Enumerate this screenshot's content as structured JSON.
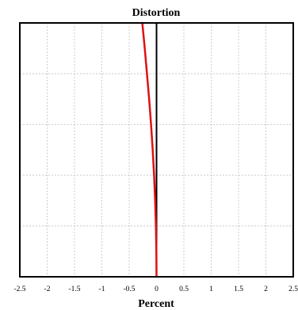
{
  "chart_data": {
    "type": "line",
    "title": "Distortion",
    "xlabel": "Percent",
    "ylabel": "",
    "xlim": [
      -2.5,
      2.5
    ],
    "ylim": [
      0,
      1
    ],
    "x_ticks": [
      "-2.5",
      "-2",
      "-1.5",
      "-1",
      "-0.5",
      "0",
      "0.5",
      "1",
      "1.5",
      "2",
      "2.5"
    ],
    "y_gridlines": 5,
    "grid": true,
    "series": [
      {
        "color": "#e01010",
        "points": [
          {
            "x": 0.0,
            "y": 0.0
          },
          {
            "x": -0.003,
            "y": 0.1
          },
          {
            "x": -0.011,
            "y": 0.2
          },
          {
            "x": -0.025,
            "y": 0.3
          },
          {
            "x": -0.045,
            "y": 0.4
          },
          {
            "x": -0.07,
            "y": 0.5
          },
          {
            "x": -0.1,
            "y": 0.6
          },
          {
            "x": -0.135,
            "y": 0.7
          },
          {
            "x": -0.175,
            "y": 0.8
          },
          {
            "x": -0.215,
            "y": 0.9
          },
          {
            "x": -0.26,
            "y": 1.0
          }
        ]
      }
    ],
    "colors": {
      "frame": "#000000",
      "grid": "#bfbfbf",
      "zero_axis": "#000000"
    }
  }
}
